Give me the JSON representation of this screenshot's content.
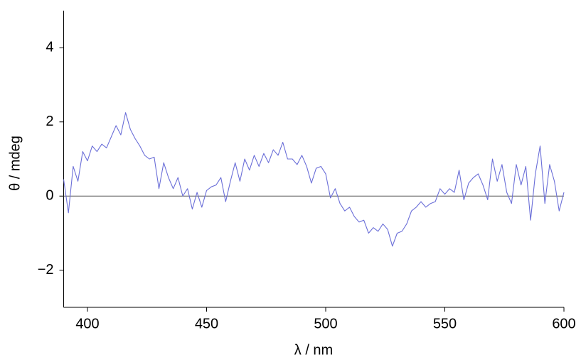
{
  "chart_data": {
    "type": "line",
    "xlabel": "λ / nm",
    "ylabel": "θ / mdeg",
    "x": [
      390,
      392,
      394,
      396,
      398,
      400,
      402,
      404,
      406,
      408,
      410,
      412,
      414,
      416,
      418,
      420,
      422,
      424,
      426,
      428,
      430,
      432,
      434,
      436,
      438,
      440,
      442,
      444,
      446,
      448,
      450,
      452,
      454,
      456,
      458,
      460,
      462,
      464,
      466,
      468,
      470,
      472,
      474,
      476,
      478,
      480,
      482,
      484,
      486,
      488,
      490,
      492,
      494,
      496,
      498,
      500,
      502,
      504,
      506,
      508,
      510,
      512,
      514,
      516,
      518,
      520,
      522,
      524,
      526,
      528,
      530,
      532,
      534,
      536,
      538,
      540,
      542,
      544,
      546,
      548,
      550,
      552,
      554,
      556,
      558,
      560,
      562,
      564,
      566,
      568,
      570,
      572,
      574,
      576,
      578,
      580,
      582,
      584,
      586,
      588,
      590,
      592,
      594,
      596,
      598,
      600
    ],
    "series": [
      {
        "color": "#6b6fd8",
        "values": [
          0.45,
          -0.45,
          0.8,
          0.4,
          1.2,
          0.95,
          1.35,
          1.2,
          1.4,
          1.3,
          1.6,
          1.9,
          1.65,
          2.25,
          1.8,
          1.55,
          1.35,
          1.1,
          1.0,
          1.05,
          0.2,
          0.9,
          0.5,
          0.2,
          0.5,
          0.0,
          0.2,
          -0.35,
          0.1,
          -0.3,
          0.15,
          0.25,
          0.3,
          0.5,
          -0.15,
          0.4,
          0.9,
          0.4,
          1.0,
          0.7,
          1.1,
          0.8,
          1.15,
          0.9,
          1.25,
          1.1,
          1.45,
          1.0,
          1.0,
          0.85,
          1.1,
          0.8,
          0.35,
          0.75,
          0.8,
          0.6,
          -0.05,
          0.2,
          -0.2,
          -0.4,
          -0.3,
          -0.55,
          -0.7,
          -0.65,
          -1.0,
          -0.85,
          -0.95,
          -0.75,
          -0.9,
          -1.35,
          -1.0,
          -0.95,
          -0.75,
          -0.4,
          -0.3,
          -0.15,
          -0.3,
          -0.2,
          -0.15,
          0.2,
          0.05,
          0.2,
          0.1,
          0.7,
          -0.1,
          0.35,
          0.5,
          0.6,
          0.3,
          -0.1,
          1.0,
          0.4,
          0.85,
          0.1,
          -0.2,
          0.85,
          0.3,
          0.8,
          -0.65,
          0.6,
          1.35,
          -0.2,
          0.85,
          0.4,
          -0.4,
          0.1
        ]
      }
    ],
    "xlim": [
      390,
      600
    ],
    "xticks": [
      400,
      450,
      500,
      550,
      600
    ],
    "ylim": [
      -3,
      5
    ],
    "yticks": [
      {
        "value": -2,
        "label": "−2"
      },
      0,
      2,
      4
    ],
    "reference_line": 0,
    "grid": false
  }
}
